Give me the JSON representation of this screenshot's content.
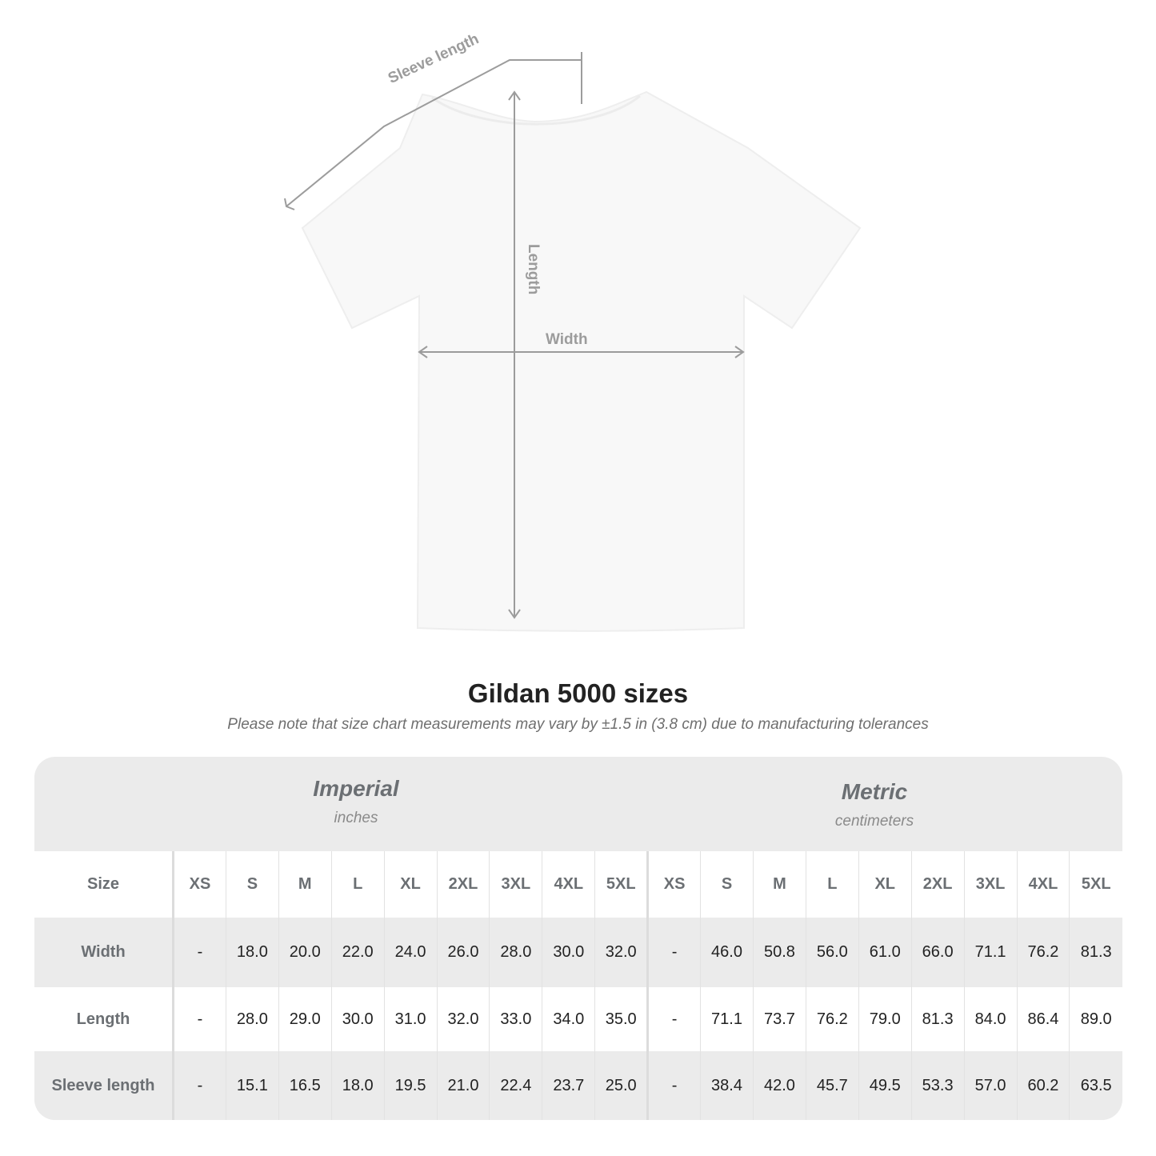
{
  "diagram": {
    "labels": {
      "sleeve": "Sleeve length",
      "length": "Length",
      "width": "Width"
    },
    "colors": {
      "shirt": "#f8f8f8",
      "measure_line": "#9c9c9c"
    }
  },
  "title": "Gildan 5000 sizes",
  "note": "Please note that size chart measurements may vary by ±1.5 in (3.8 cm) due to manufacturing tolerances",
  "table": {
    "imperial": {
      "name": "Imperial",
      "unit": "inches"
    },
    "metric": {
      "name": "Metric",
      "unit": "centimeters"
    },
    "size_label": "Size",
    "sizes": [
      "XS",
      "S",
      "M",
      "L",
      "XL",
      "2XL",
      "3XL",
      "4XL",
      "5XL"
    ],
    "rows": [
      {
        "label": "Width",
        "imperial": [
          "-",
          "18.0",
          "20.0",
          "22.0",
          "24.0",
          "26.0",
          "28.0",
          "30.0",
          "32.0"
        ],
        "metric": [
          "-",
          "46.0",
          "50.8",
          "56.0",
          "61.0",
          "66.0",
          "71.1",
          "76.2",
          "81.3"
        ]
      },
      {
        "label": "Length",
        "imperial": [
          "-",
          "28.0",
          "29.0",
          "30.0",
          "31.0",
          "32.0",
          "33.0",
          "34.0",
          "35.0"
        ],
        "metric": [
          "-",
          "71.1",
          "73.7",
          "76.2",
          "79.0",
          "81.3",
          "84.0",
          "86.4",
          "89.0"
        ]
      },
      {
        "label": "Sleeve length",
        "imperial": [
          "-",
          "15.1",
          "16.5",
          "18.0",
          "19.5",
          "21.0",
          "22.4",
          "23.7",
          "25.0"
        ],
        "metric": [
          "-",
          "38.4",
          "42.0",
          "45.7",
          "49.5",
          "53.3",
          "57.0",
          "60.2",
          "63.5"
        ]
      }
    ]
  }
}
